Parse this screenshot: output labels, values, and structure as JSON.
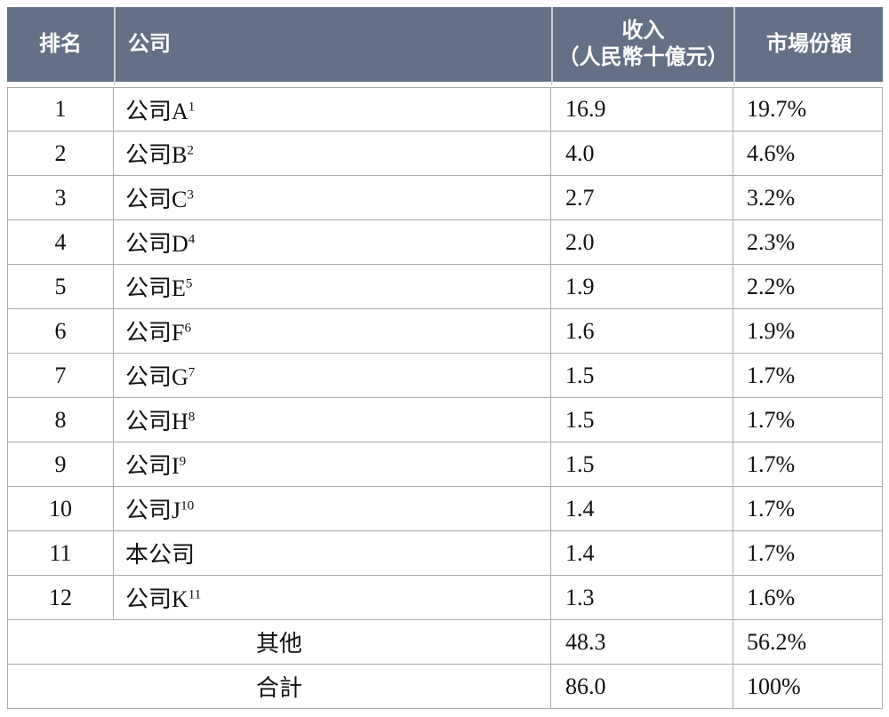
{
  "table": {
    "headers": {
      "rank": "排名",
      "company": "公司",
      "revenue_line1": "收入",
      "revenue_line2": "（人民幣十億元）",
      "share": "市場份額"
    },
    "rows": [
      {
        "rank": "1",
        "company": "公司A",
        "sup": "1",
        "revenue": "16.9",
        "share": "19.7%"
      },
      {
        "rank": "2",
        "company": "公司B",
        "sup": "2",
        "revenue": "4.0",
        "share": "4.6%"
      },
      {
        "rank": "3",
        "company": "公司C",
        "sup": "3",
        "revenue": "2.7",
        "share": "3.2%"
      },
      {
        "rank": "4",
        "company": "公司D",
        "sup": "4",
        "revenue": "2.0",
        "share": "2.3%"
      },
      {
        "rank": "5",
        "company": "公司E",
        "sup": "5",
        "revenue": "1.9",
        "share": "2.2%"
      },
      {
        "rank": "6",
        "company": "公司F",
        "sup": "6",
        "revenue": "1.6",
        "share": "1.9%"
      },
      {
        "rank": "7",
        "company": "公司G",
        "sup": "7",
        "revenue": "1.5",
        "share": "1.7%"
      },
      {
        "rank": "8",
        "company": "公司H",
        "sup": "8",
        "revenue": "1.5",
        "share": "1.7%"
      },
      {
        "rank": "9",
        "company": "公司I",
        "sup": "9",
        "revenue": "1.5",
        "share": "1.7%"
      },
      {
        "rank": "10",
        "company": "公司J",
        "sup": "10",
        "revenue": "1.4",
        "share": "1.7%"
      },
      {
        "rank": "11",
        "company": "本公司",
        "sup": "",
        "revenue": "1.4",
        "share": "1.7%"
      },
      {
        "rank": "12",
        "company": "公司K",
        "sup": "11",
        "revenue": "1.3",
        "share": "1.6%"
      }
    ],
    "other": {
      "label": "其他",
      "revenue": "48.3",
      "share": "56.2%"
    },
    "total": {
      "label": "合計",
      "revenue": "86.0",
      "share": "100%"
    }
  },
  "colors": {
    "header_bg": "#637086",
    "header_text": "#ffffff",
    "border": "#aaaaaa",
    "body_text": "#111111"
  }
}
